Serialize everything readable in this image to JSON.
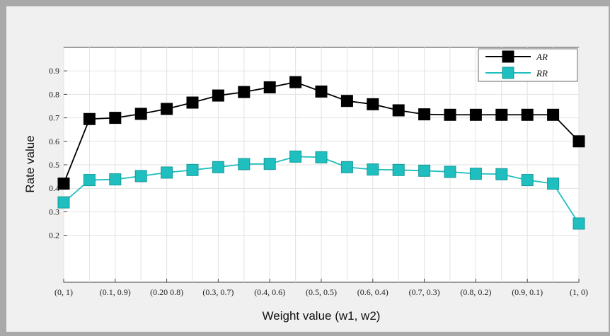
{
  "chart_data": {
    "type": "line",
    "xlabel": "Weight value (w1, w2)",
    "ylabel": "Rate value",
    "x_tick_labels": [
      "(0, 1)",
      "(0.1, 0.9)",
      "(0.20 0.8)",
      "(0.3, 0.7)",
      "(0.4, 0.6)",
      "(0.5, 0.5)",
      "(0.6, 0.4)",
      "(0.7, 0.3)",
      "(0.8, 0.2)",
      "(0.9, 0.1)",
      "(1, 0)"
    ],
    "y_tick_labels": [
      "0.2",
      "0.3",
      "0.4",
      "0.5",
      "0.6",
      "0.7",
      "0.8",
      "0.9"
    ],
    "ylim": [
      0,
      1
    ],
    "grid": true,
    "legend_position": "top-right",
    "series": [
      {
        "name": "AR",
        "color": "#000000",
        "marker": "square",
        "values": [
          0.42,
          0.695,
          0.7,
          0.717,
          0.738,
          0.765,
          0.795,
          0.81,
          0.83,
          0.852,
          0.812,
          0.772,
          0.758,
          0.732,
          0.715,
          0.713,
          0.713,
          0.713,
          0.713,
          0.713,
          0.6
        ]
      },
      {
        "name": "RR",
        "color": "#1fbfbf",
        "marker": "square",
        "values": [
          0.34,
          0.435,
          0.438,
          0.452,
          0.467,
          0.478,
          0.49,
          0.503,
          0.504,
          0.535,
          0.532,
          0.49,
          0.48,
          0.478,
          0.475,
          0.47,
          0.462,
          0.46,
          0.435,
          0.42,
          0.25
        ]
      }
    ]
  }
}
